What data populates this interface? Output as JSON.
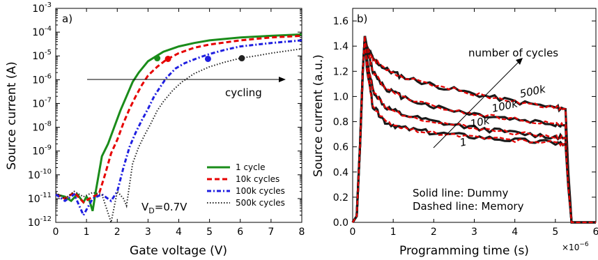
{
  "chart_data": [
    {
      "type": "line",
      "panel_label": "a)",
      "xlabel": "Gate voltage (V)",
      "ylabel": "Source current (A)",
      "xlim": [
        0,
        8
      ],
      "ylim_log10": [
        -12,
        -3
      ],
      "y_scale": "log",
      "x_ticks": [
        "0",
        "1",
        "2",
        "3",
        "4",
        "5",
        "6",
        "7",
        "8"
      ],
      "y_tick_bases": [
        "10",
        "10",
        "10",
        "10",
        "10",
        "10",
        "10",
        "10",
        "10",
        "10"
      ],
      "y_tick_exps": [
        "-12",
        "-11",
        "-10",
        "-9",
        "-8",
        "-7",
        "-6",
        "-5",
        "-4",
        "-3"
      ],
      "legend_position": "lower-right",
      "annotations": {
        "arrow_text": "cycling",
        "vd_prefix": "V",
        "vd_sub": "D",
        "vd_suffix": "=0.7V"
      },
      "series": [
        {
          "name": "1 cycle",
          "color": "#1a8c1a",
          "style": "solid",
          "x": [
            0,
            0.3,
            0.5,
            0.7,
            0.9,
            1.0,
            1.1,
            1.2,
            1.3,
            1.5,
            1.7,
            1.9,
            2.1,
            2.3,
            2.5,
            2.7,
            3.0,
            3.5,
            4.0,
            4.5,
            5,
            6,
            7,
            8
          ],
          "y": [
            1.5e-11,
            1.2e-11,
            8e-12,
            1.5e-11,
            7e-12,
            1.2e-11,
            8e-12,
            3e-12,
            2e-11,
            6e-10,
            2e-09,
            1e-08,
            5e-08,
            2e-07,
            8e-07,
            2e-06,
            6e-06,
            1.5e-05,
            2.5e-05,
            3.5e-05,
            4.5e-05,
            6e-05,
            7e-05,
            8e-05
          ],
          "marker": {
            "x": 3.3,
            "y": 8e-06
          }
        },
        {
          "name": "10k cycles",
          "color": "#e60000",
          "style": "dashed",
          "x": [
            0,
            0.3,
            0.6,
            0.9,
            1.2,
            1.4,
            1.6,
            1.8,
            2.0,
            2.2,
            2.4,
            2.6,
            2.8,
            3.0,
            3.3,
            3.6,
            4.0,
            4.5,
            5,
            6,
            7,
            8
          ],
          "y": [
            1.5e-11,
            1e-11,
            1.8e-11,
            7e-12,
            1.2e-11,
            1.5e-11,
            1e-10,
            8e-10,
            3e-09,
            1.5e-08,
            6e-08,
            2e-07,
            6e-07,
            1.5e-06,
            3.5e-06,
            7e-06,
            1.3e-05,
            2.2e-05,
            3e-05,
            4.5e-05,
            6e-05,
            7e-05
          ],
          "marker": {
            "x": 3.65,
            "y": 7.5e-06
          }
        },
        {
          "name": "100k cycles",
          "color": "#1f1fe0",
          "style": "dashdot",
          "x": [
            0,
            0.3,
            0.6,
            0.9,
            1.2,
            1.5,
            1.8,
            2.0,
            2.2,
            2.4,
            2.6,
            2.8,
            3.0,
            3.2,
            3.4,
            3.6,
            3.9,
            4.2,
            4.6,
            5.0,
            5.5,
            6,
            7,
            8
          ],
          "y": [
            1.5e-11,
            8e-12,
            1.5e-11,
            2e-12,
            1e-11,
            1.5e-11,
            8e-12,
            2e-11,
            2e-10,
            1.5e-09,
            6e-09,
            2e-08,
            6e-08,
            2e-07,
            5e-07,
            1.2e-06,
            3e-06,
            5e-06,
            8e-06,
            1.2e-05,
            1.8e-05,
            2.5e-05,
            3.5e-05,
            4.5e-05
          ],
          "marker": {
            "x": 4.95,
            "y": 7.5e-06
          }
        },
        {
          "name": "500k cycles",
          "color": "#222222",
          "style": "dotted",
          "x": [
            0,
            0.3,
            0.6,
            0.9,
            1.2,
            1.5,
            1.8,
            2.0,
            2.2,
            2.3,
            2.5,
            2.7,
            2.9,
            3.1,
            3.3,
            3.5,
            3.8,
            4.1,
            4.5,
            5.0,
            5.5,
            6.0,
            6.5,
            7,
            8
          ],
          "y": [
            1.8e-11,
            1e-11,
            2e-11,
            1.2e-11,
            1.8e-11,
            1.5e-11,
            1e-12,
            2e-11,
            1e-11,
            5e-12,
            3e-10,
            1.5e-09,
            5e-09,
            1.5e-08,
            5e-08,
            1.2e-07,
            3.5e-07,
            8e-07,
            1.8e-06,
            3.5e-06,
            5.5e-06,
            8e-06,
            1e-05,
            1.3e-05,
            2e-05
          ],
          "marker": {
            "x": 6.05,
            "y": 8e-06
          }
        }
      ]
    },
    {
      "type": "line",
      "panel_label": "b)",
      "xlabel": "Programming time (s)",
      "x_multiplier_base": "×10",
      "x_multiplier_exp": "−6",
      "ylabel": "Source current (a.u.)",
      "xlim": [
        0,
        6
      ],
      "ylim": [
        0,
        1.7
      ],
      "x_ticks": [
        "0",
        "1",
        "2",
        "3",
        "4",
        "5",
        "6"
      ],
      "y_ticks": [
        "0.0",
        "0.2",
        "0.4",
        "0.6",
        "0.8",
        "1.0",
        "1.2",
        "1.4",
        "1.6"
      ],
      "annotations": {
        "arrow_text": "number of cycles",
        "legend_line1": "Solid line: Dummy",
        "legend_line2": "Dashed line: Memory",
        "curve_labels": [
          "500k",
          "100k",
          "10k",
          "1"
        ]
      },
      "series": [
        {
          "name": "500k",
          "x": [
            0,
            0.1,
            0.18,
            0.25,
            0.3,
            0.35,
            0.5,
            0.8,
            1.2,
            2,
            3,
            4,
            5,
            5.25,
            5.32,
            5.4,
            6
          ],
          "y": [
            0,
            0.05,
            0.6,
            1.2,
            1.48,
            1.4,
            1.3,
            1.22,
            1.16,
            1.09,
            1.02,
            0.96,
            0.91,
            0.9,
            0.4,
            0,
            0
          ]
        },
        {
          "name": "100k",
          "x": [
            0,
            0.1,
            0.18,
            0.25,
            0.3,
            0.35,
            0.5,
            0.8,
            1.2,
            2,
            3,
            4,
            5,
            5.25,
            5.32,
            5.4,
            6
          ],
          "y": [
            0,
            0.05,
            0.6,
            1.2,
            1.48,
            1.38,
            1.2,
            1.07,
            1.0,
            0.92,
            0.86,
            0.82,
            0.78,
            0.77,
            0.35,
            0,
            0
          ]
        },
        {
          "name": "10k",
          "x": [
            0,
            0.1,
            0.18,
            0.25,
            0.3,
            0.35,
            0.5,
            0.8,
            1.2,
            2,
            3,
            4,
            5,
            5.25,
            5.32,
            5.4,
            6
          ],
          "y": [
            0,
            0.05,
            0.6,
            1.2,
            1.48,
            1.3,
            1.05,
            0.92,
            0.86,
            0.8,
            0.75,
            0.71,
            0.68,
            0.67,
            0.3,
            0,
            0
          ]
        },
        {
          "name": "1",
          "x": [
            0,
            0.1,
            0.18,
            0.25,
            0.3,
            0.35,
            0.5,
            0.8,
            1.2,
            2,
            3,
            4,
            5,
            5.25,
            5.32,
            5.4,
            6
          ],
          "y": [
            0,
            0.05,
            0.6,
            1.2,
            1.48,
            1.22,
            0.92,
            0.8,
            0.75,
            0.71,
            0.68,
            0.65,
            0.63,
            0.62,
            0.28,
            0,
            0
          ]
        }
      ]
    }
  ]
}
